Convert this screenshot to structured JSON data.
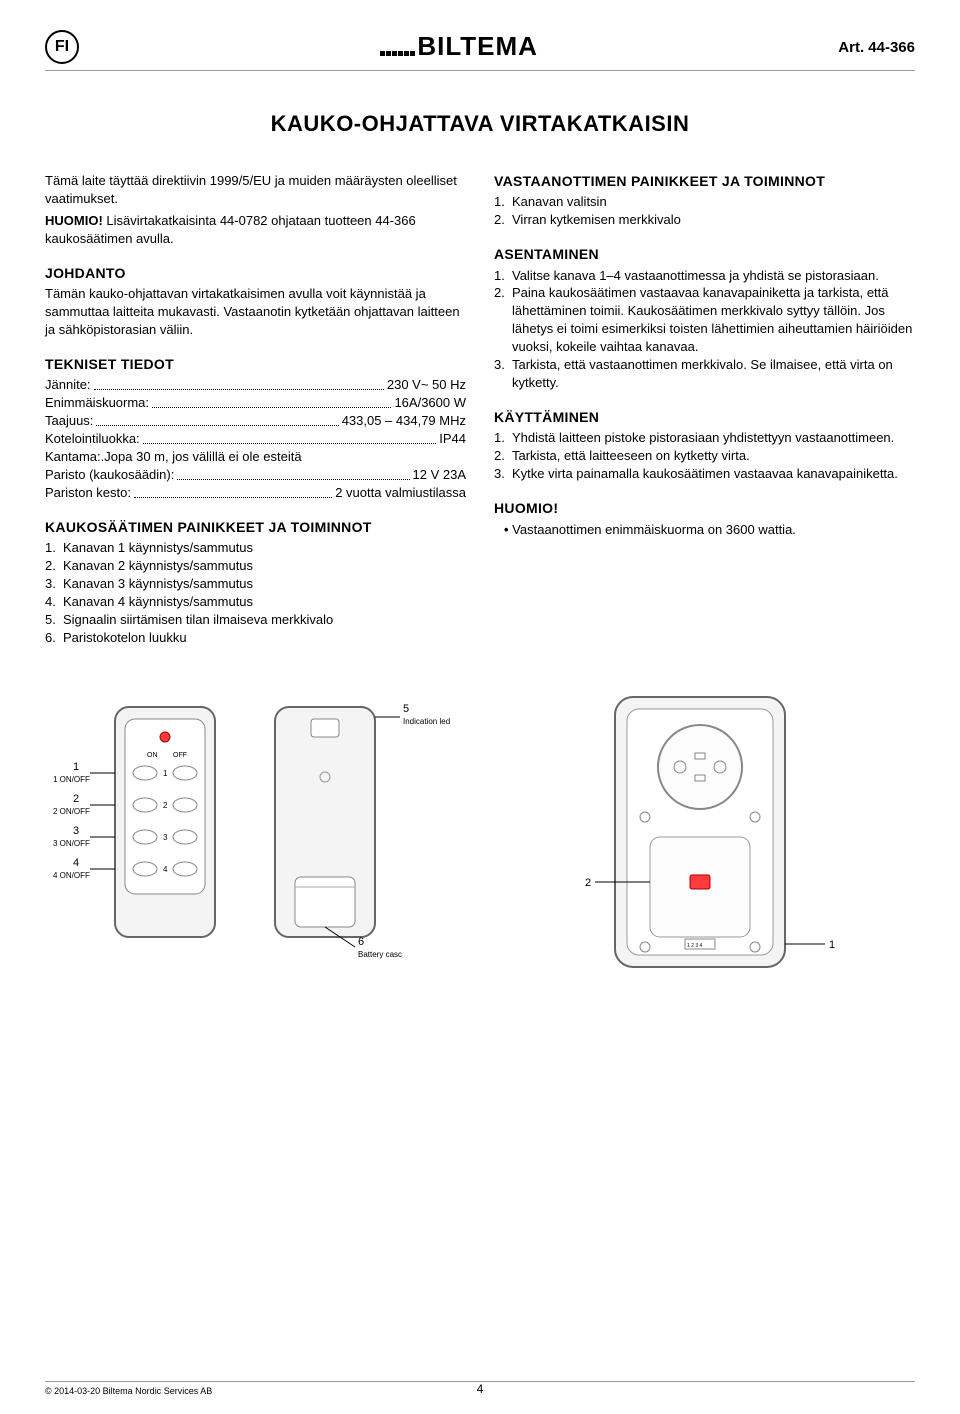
{
  "header": {
    "lang": "FI",
    "brand": "BILTEMA",
    "art": "Art. 44-366"
  },
  "title": "KAUKO-OHJATTAVA VIRTAKATKAISIN",
  "left": {
    "intro1": "Tämä laite täyttää direktiivin 1999/5/EU ja muiden määräysten oleelliset vaatimukset.",
    "huomio_label": "HUOMIO!",
    "huomio_text": " Lisävirtakatkaisinta 44-0782 ohjataan tuotteen 44-366 kaukosäätimen avulla.",
    "johdanto_head": "JOHDANTO",
    "johdanto_text": "Tämän kauko-ohjattavan virtakatkaisimen avulla voit käynnistää ja sammuttaa laitteita mukavasti. Vastaanotin kytketään ohjattavan laitteen ja sähköpistorasian väliin.",
    "tekniset_head": "TEKNISET TIEDOT",
    "specs": [
      {
        "label": "Jännite:",
        "value": "230 V~ 50 Hz"
      },
      {
        "label": "Enimmäiskuorma:",
        "value": "16A/3600 W"
      },
      {
        "label": "Taajuus:",
        "value": "433,05 – 434,79 MHz"
      },
      {
        "label": "Kotelointiluokka:",
        "value": "IP44"
      },
      {
        "label": "Kantama:",
        "value": "Jopa 30 m, jos välillä ei ole esteitä",
        "nodots": true
      },
      {
        "label": "Paristo (kaukosäädin):",
        "value": "12 V 23A"
      },
      {
        "label": "Pariston kesto:",
        "value": "2 vuotta valmiustilassa"
      }
    ],
    "kauko_head": "KAUKOSÄÄTIMEN PAINIKKEET JA TOIMINNOT",
    "kauko_items": [
      "Kanavan 1 käynnistys/sammutus",
      "Kanavan 2 käynnistys/sammutus",
      "Kanavan 3 käynnistys/sammutus",
      "Kanavan 4 käynnistys/sammutus",
      "Signaalin siirtämisen tilan ilmaiseva merkkivalo",
      "Paristokotelon luukku"
    ]
  },
  "right": {
    "vast_head": "VASTAANOTTIMEN PAINIKKEET JA TOIMINNOT",
    "vast_items": [
      "Kanavan valitsin",
      "Virran kytkemisen merkkivalo"
    ],
    "asent_head": "ASENTAMINEN",
    "asent_items": [
      "Valitse kanava 1–4 vastaanottimessa ja yhdistä se pistorasiaan.",
      "Paina kaukosäätimen vastaavaa kanavapainiketta ja tarkista, että lähettäminen toimii. Kaukosäätimen merkkivalo syttyy tällöin. Jos lähetys ei toimi esimerkiksi toisten lähettimien aiheuttamien häiriöiden vuoksi, kokeile vaihtaa kanavaa.",
      "Tarkista, että vastaanottimen merkkivalo. Se ilmaisee, että virta on kytketty."
    ],
    "kaytt_head": "KÄYTTÄMINEN",
    "kaytt_items": [
      "Yhdistä laitteen pistoke pistorasiaan yhdistettyyn vastaanottimeen.",
      "Tarkista, että laitteeseen on kytketty virta.",
      "Kytke virta painamalla kaukosäätimen vastaavaa kanavapainiketta."
    ],
    "huomio2_head": "HUOMIO!",
    "huomio2_item": "Vastaanottimen enimmäiskuorma on 3600 wattia."
  },
  "diagrams": {
    "remote_front": {
      "callouts": [
        "1",
        "2",
        "3",
        "4"
      ],
      "callout_labels": [
        "1 ON/OFF",
        "2 ON/OFF",
        "3 ON/OFF",
        "4 ON/OFF"
      ],
      "on": "ON",
      "off": "OFF",
      "btn_labels": [
        "1",
        "2",
        "3",
        "4"
      ]
    },
    "remote_back": {
      "c5": "5",
      "c5_label": "Indication led",
      "c6": "6",
      "c6_label": "Battery casc"
    },
    "receiver": {
      "c2": "2",
      "c1": "1",
      "switch": "1 2 3 4"
    }
  },
  "footer": {
    "copyright": "© 2014-03-20 Biltema Nordic Services AB",
    "page": "4"
  }
}
